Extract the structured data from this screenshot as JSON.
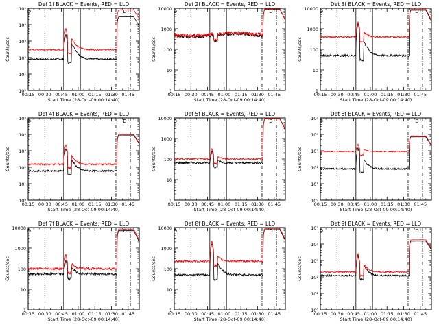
{
  "chart_data": [
    {
      "type": "line",
      "title": "Det 1f BLACK = Events, RED = LLD",
      "xlabel": "Start Time (28-Oct-09 00:14:40)",
      "ylabel": "Counts/sec",
      "yscale": "log",
      "ylim": [
        1,
        100000
      ],
      "yticks": [
        "10⁰",
        "10¹",
        "10²",
        "10³",
        "10⁴",
        "10⁵"
      ],
      "series": [
        {
          "name": "Events",
          "color": "#000000",
          "base": 80,
          "spike1": 2500,
          "spike2": 800,
          "post": 30000,
          "noise": 0.05
        },
        {
          "name": "LLD",
          "color": "#ff0000",
          "base": 300,
          "spike1": 6000,
          "spike2": 1500,
          "post": 80000,
          "noise": 0.04
        }
      ]
    },
    {
      "type": "line",
      "title": "Det 2f BLACK = Events, RED = LLD",
      "xlabel": "Start Time (28-Oct-09 00:14:40)",
      "ylabel": "Counts/sec",
      "yscale": "log",
      "ylim": [
        1,
        10000
      ],
      "yticks": [
        "1",
        "10",
        "100",
        "1000",
        "10000"
      ],
      "series": [
        {
          "name": "Events",
          "color": "#000000",
          "base": 420,
          "spike1": 520,
          "spike2": 500,
          "post": 9000,
          "noise": 0.08,
          "hump": 1.4
        },
        {
          "name": "LLD",
          "color": "#ff0000",
          "base": 480,
          "spike1": 600,
          "spike2": 560,
          "post": 9500,
          "noise": 0.08,
          "hump": 1.35
        }
      ]
    },
    {
      "type": "line",
      "title": "Det 3f BLACK = Events, RED = LLD",
      "xlabel": "Start Time (28-Oct-09 00:14:40)",
      "ylabel": "Counts/sec",
      "yscale": "log",
      "ylim": [
        1,
        10000
      ],
      "yticks": [
        "1",
        "10",
        "100",
        "1000",
        "10000"
      ],
      "series": [
        {
          "name": "Events",
          "color": "#000000",
          "base": 50,
          "spike1": 1800,
          "spike2": 250,
          "post": 8000,
          "noise": 0.05
        },
        {
          "name": "LLD",
          "color": "#ff0000",
          "base": 400,
          "spike1": 2200,
          "spike2": 700,
          "post": 9000,
          "noise": 0.04
        }
      ]
    },
    {
      "type": "line",
      "title": "Det 4f BLACK = Events, RED = LLD",
      "xlabel": "Start Time (28-Oct-09 00:14:40)",
      "ylabel": "Counts/sec",
      "yscale": "log",
      "ylim": [
        1,
        100000
      ],
      "yticks": [
        "10⁰",
        "10¹",
        "10²",
        "10³",
        "10⁴",
        "10⁵"
      ],
      "series": [
        {
          "name": "Events",
          "color": "#000000",
          "base": 60,
          "spike1": 1500,
          "spike2": 300,
          "post": 9000,
          "noise": 0.05
        },
        {
          "name": "LLD",
          "color": "#ff0000",
          "base": 150,
          "spike1": 2500,
          "spike2": 500,
          "post": 10000,
          "noise": 0.05
        }
      ]
    },
    {
      "type": "line",
      "title": "Det 5f BLACK = Events, RED = LLD",
      "xlabel": "Start Time (28-Oct-09 00:14:40)",
      "ylabel": "Counts/sec",
      "yscale": "log",
      "ylim": [
        1,
        10000
      ],
      "yticks": [
        "1",
        "10",
        "100",
        "1000",
        "10000"
      ],
      "series": [
        {
          "name": "Events",
          "color": "#000000",
          "base": 65,
          "spike1": 250,
          "spike2": 90,
          "post": 9000,
          "noise": 0.05
        },
        {
          "name": "LLD",
          "color": "#ff0000",
          "base": 100,
          "spike1": 350,
          "spike2": 130,
          "post": 9500,
          "noise": 0.04
        }
      ]
    },
    {
      "type": "line",
      "title": "Det 6f BLACK = Events, RED = LLD",
      "xlabel": "Start Time (28-Oct-09 00:14:40)",
      "ylabel": "Counts/sec",
      "yscale": "log",
      "ylim": [
        1,
        100000
      ],
      "yticks": [
        "10⁰",
        "10¹",
        "10²",
        "10³",
        "10⁴",
        "10⁵"
      ],
      "series": [
        {
          "name": "Events",
          "color": "#000000",
          "base": 80,
          "spike1": 1500,
          "spike2": 300,
          "post": 7000,
          "noise": 0.05
        },
        {
          "name": "LLD",
          "color": "#ff0000",
          "base": 900,
          "spike1": 2500,
          "spike2": 1200,
          "post": 8000,
          "noise": 0.03
        }
      ]
    },
    {
      "type": "line",
      "title": "Det 7f BLACK = Events, RED = LLD",
      "xlabel": "Start Time (28-Oct-09 00:14:40)",
      "ylabel": "Counts/sec",
      "yscale": "log",
      "ylim": [
        1,
        10000
      ],
      "yticks": [
        "1",
        "10",
        "100",
        "1000",
        "10000"
      ],
      "series": [
        {
          "name": "Events",
          "color": "#000000",
          "base": 55,
          "spike1": 250,
          "spike2": 120,
          "post": 7000,
          "noise": 0.06
        },
        {
          "name": "LLD",
          "color": "#ff0000",
          "base": 100,
          "spike1": 500,
          "spike2": 180,
          "post": 8500,
          "noise": 0.06
        }
      ]
    },
    {
      "type": "line",
      "title": "Det 8f BLACK = Events, RED = LLD",
      "xlabel": "Start Time (28-Oct-09 00:14:40)",
      "ylabel": "Counts/sec",
      "yscale": "log",
      "ylim": [
        1,
        10000
      ],
      "yticks": [
        "1",
        "10",
        "100",
        "1000",
        "10000"
      ],
      "series": [
        {
          "name": "Events",
          "color": "#000000",
          "base": 50,
          "spike1": 1800,
          "spike2": 200,
          "post": 8000,
          "noise": 0.05
        },
        {
          "name": "LLD",
          "color": "#ff0000",
          "base": 230,
          "spike1": 2200,
          "spike2": 400,
          "post": 9000,
          "noise": 0.05
        }
      ]
    },
    {
      "type": "line",
      "title": "Det 9f BLACK = Events, RED = LLD",
      "xlabel": "Start Time (28-Oct-09 00:14:40)",
      "ylabel": "Counts/sec",
      "yscale": "log",
      "ylim": [
        1,
        100000
      ],
      "yticks": [
        "10⁰",
        "10¹",
        "10²",
        "10³",
        "10⁴",
        "10⁵"
      ],
      "series": [
        {
          "name": "Events",
          "color": "#000000",
          "base": 120,
          "spike1": 2000,
          "spike2": 500,
          "post": 15000,
          "noise": 0.05
        },
        {
          "name": "LLD",
          "color": "#ff0000",
          "base": 200,
          "spike1": 2500,
          "spike2": 600,
          "post": 18000,
          "noise": 0.04
        }
      ]
    }
  ],
  "xaxis": {
    "tick_labels": [
      "00:15",
      "00:30",
      "00:45",
      "01:00",
      "01:15",
      "01:30",
      "01:45"
    ],
    "tick_minutes": [
      15,
      30,
      45,
      60,
      75,
      90,
      105
    ],
    "range_minutes": [
      15,
      115
    ],
    "spike1_minute": 49,
    "spike2_minute": 54,
    "rise_minute": 95,
    "dotted_minutes": [
      30
    ],
    "solid_minutes": [
      47,
      62
    ],
    "dashdot_minutes": [
      94,
      107
    ]
  },
  "marker_label": "D"
}
